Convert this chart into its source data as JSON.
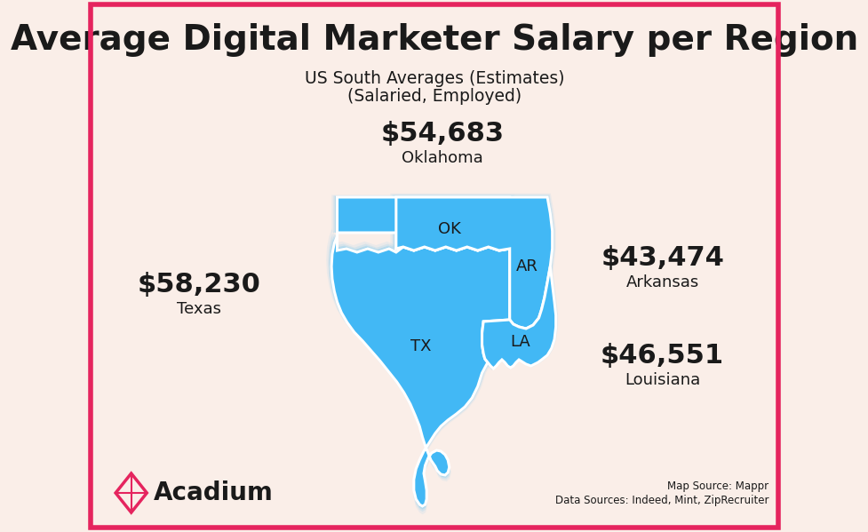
{
  "title": "Average Digital Marketer Salary per Region",
  "subtitle1": "US South Averages (Estimates)",
  "subtitle2": "(Salaried, Employed)",
  "background_color": "#faeee8",
  "border_color": "#e5245e",
  "map_fill_color": "#42b8f5",
  "map_edge_color": "#ffffff",
  "label_color": "#1a1a1a",
  "title_color": "#1a1a1a",
  "brand_color": "#e5245e",
  "source_text": "Map Source: Mappr\nData Sources: Indeed, Mint, ZipRecruiter",
  "ok_salary": "$54,683",
  "ok_name": "Oklahoma",
  "tx_salary": "$58,230",
  "tx_name": "Texas",
  "ar_salary": "$43,474",
  "ar_name": "Arkansas",
  "la_salary": "$46,551",
  "la_name": "Louisiana"
}
